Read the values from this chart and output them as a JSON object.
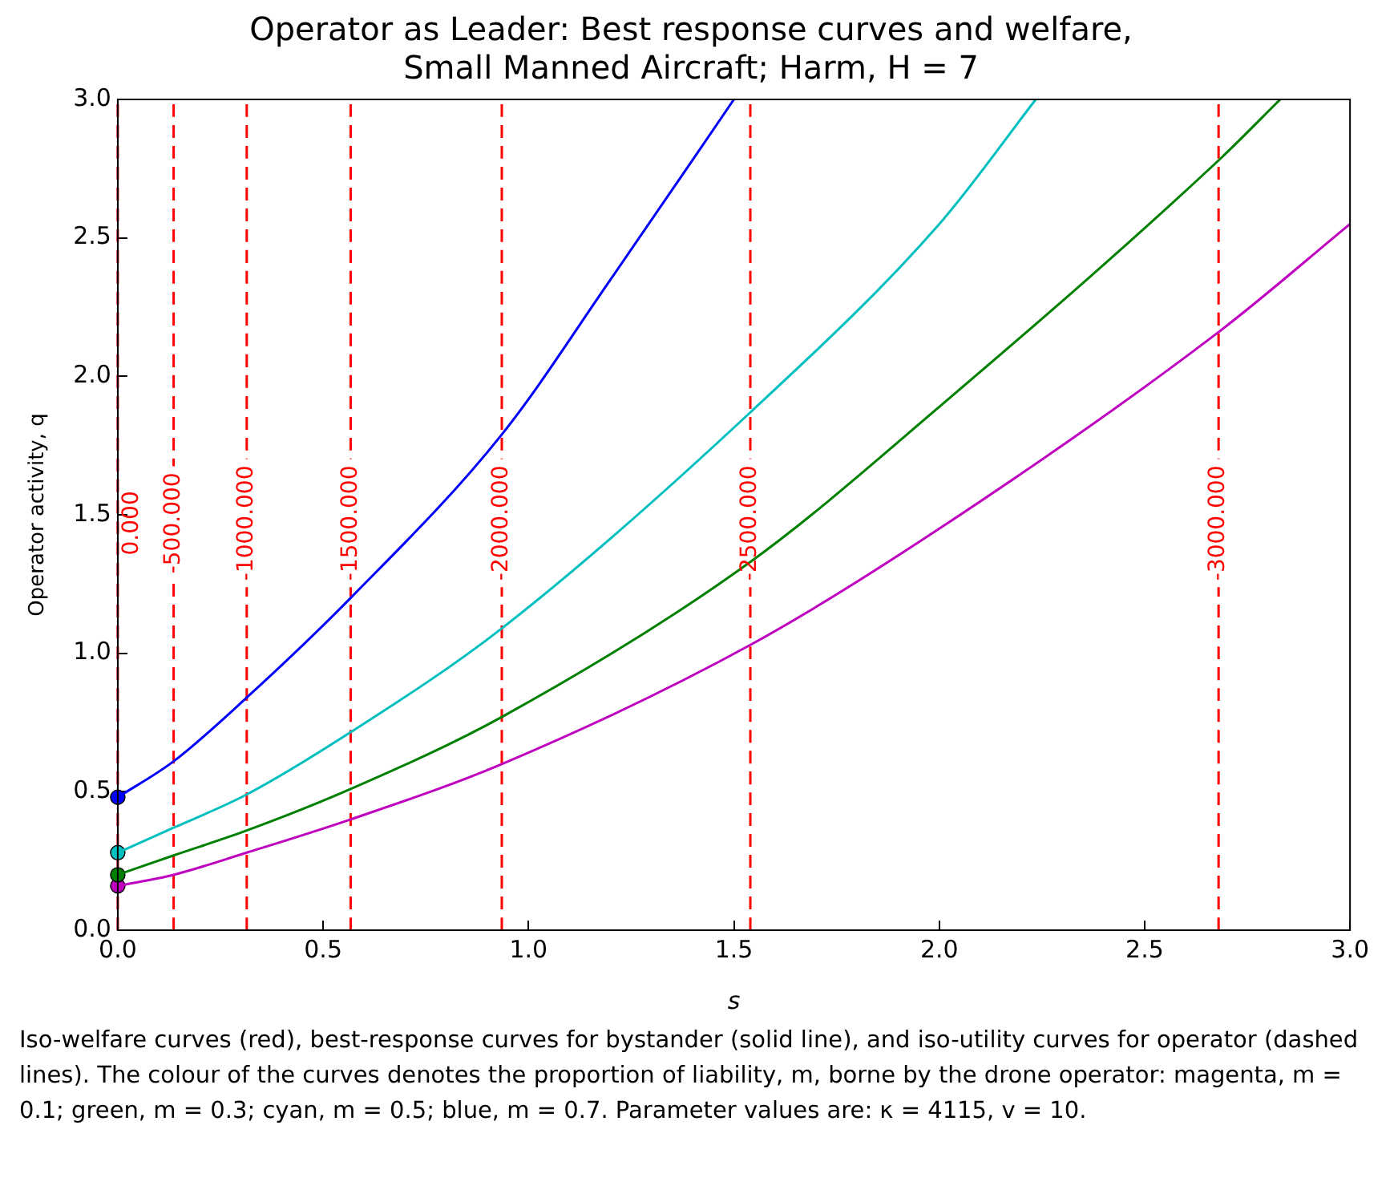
{
  "chart_data": {
    "type": "line",
    "title": [
      "Operator as Leader: Best response curves and welfare,",
      "Small Manned Aircraft; Harm, H = 7"
    ],
    "xlabel": "s",
    "ylabel": "Operator activity, q",
    "xlim": [
      0,
      3
    ],
    "ylim": [
      0,
      3
    ],
    "xticks": [
      {
        "value": 0,
        "label": "0.0"
      },
      {
        "value": 0.5,
        "label": "0.5"
      },
      {
        "value": 1,
        "label": "1.0"
      },
      {
        "value": 1.5,
        "label": "1.5"
      },
      {
        "value": 2,
        "label": "2.0"
      },
      {
        "value": 2.5,
        "label": "2.5"
      },
      {
        "value": 3,
        "label": "3.0"
      }
    ],
    "yticks": [
      {
        "value": 0,
        "label": "0.0"
      },
      {
        "value": 0.5,
        "label": "0.5"
      },
      {
        "value": 1,
        "label": "1.0"
      },
      {
        "value": 1.5,
        "label": "1.5"
      },
      {
        "value": 2,
        "label": "2.0"
      },
      {
        "value": 2.5,
        "label": "2.5"
      },
      {
        "value": 3,
        "label": "3.0"
      }
    ],
    "grid": false,
    "legend": false,
    "marker": "none",
    "line_style": "solid",
    "series": [
      {
        "type": "line",
        "color": "#0000ff",
        "x": [
          0,
          0.136,
          0.314,
          0.567,
          0.935,
          1.2,
          1.5
        ],
        "values": [
          0.48,
          0.61,
          0.84,
          1.2,
          1.79,
          2.35,
          3.0
        ]
      },
      {
        "type": "line",
        "color": "#00bfbf",
        "x": [
          0,
          0.136,
          0.314,
          0.567,
          0.935,
          1.54,
          2.0,
          2.235
        ],
        "values": [
          0.28,
          0.37,
          0.49,
          0.715,
          1.09,
          1.87,
          2.55,
          3.0
        ]
      },
      {
        "type": "line",
        "color": "#008000",
        "x": [
          0,
          0.136,
          0.314,
          0.567,
          0.935,
          1.54,
          2.0,
          2.68,
          2.83
        ],
        "values": [
          0.2,
          0.27,
          0.36,
          0.51,
          0.77,
          1.33,
          1.89,
          2.78,
          3.0
        ]
      },
      {
        "type": "line",
        "color": "#bf00bf",
        "x": [
          0,
          0.136,
          0.314,
          0.567,
          0.935,
          1.54,
          2.0,
          2.68,
          3.0
        ],
        "values": [
          0.16,
          0.2,
          0.28,
          0.4,
          0.6,
          1.03,
          1.45,
          2.16,
          2.55
        ]
      },
      {
        "type": "scatter",
        "marker": "circle",
        "color": "#0000ff",
        "x": [
          0
        ],
        "values": [
          0.48
        ]
      },
      {
        "type": "scatter",
        "marker": "circle",
        "color": "#00bfbf",
        "x": [
          0
        ],
        "values": [
          0.28
        ]
      },
      {
        "type": "scatter",
        "marker": "circle",
        "color": "#008000",
        "x": [
          0
        ],
        "values": [
          0.2
        ]
      },
      {
        "type": "scatter",
        "marker": "circle",
        "color": "#bf00bf",
        "x": [
          0
        ],
        "values": [
          0.16
        ]
      },
      {
        "type": "line",
        "name": "0.000",
        "color": "#ff0000",
        "line_style": "dashed",
        "x": [
          0,
          0
        ],
        "values": [
          0,
          3
        ]
      },
      {
        "type": "line",
        "name": "-500.000",
        "color": "#ff0000",
        "line_style": "dashed",
        "x": [
          0.136,
          0.136
        ],
        "values": [
          0,
          3
        ]
      },
      {
        "type": "line",
        "name": "-1000.000",
        "color": "#ff0000",
        "line_style": "dashed",
        "x": [
          0.314,
          0.314
        ],
        "values": [
          0,
          3
        ]
      },
      {
        "type": "line",
        "name": "-1500.000",
        "color": "#ff0000",
        "line_style": "dashed",
        "x": [
          0.567,
          0.567
        ],
        "values": [
          0,
          3
        ]
      },
      {
        "type": "line",
        "name": "-2000.000",
        "color": "#ff0000",
        "line_style": "dashed",
        "x": [
          0.935,
          0.935
        ],
        "values": [
          0,
          3
        ]
      },
      {
        "type": "line",
        "name": "-2500.000",
        "color": "#ff0000",
        "line_style": "dashed",
        "x": [
          1.54,
          1.54
        ],
        "values": [
          0,
          3
        ]
      },
      {
        "type": "line",
        "name": "-3000.000",
        "color": "#ff0000",
        "line_style": "dashed",
        "x": [
          2.68,
          2.68
        ],
        "values": [
          0,
          3
        ]
      }
    ],
    "annotations": [
      "Iso-welfare curves (red), best-response curves for bystander (solid line), and iso-utility curves for operator (dashed lines). The colour of the curves denotes the proportion of liability, m, borne by the drone operator: magenta, m = 0.1; green, m = 0.3; cyan, m = 0.5; blue, m = 0.7. Parameter values are: κ = 4115, v = 10."
    ]
  }
}
